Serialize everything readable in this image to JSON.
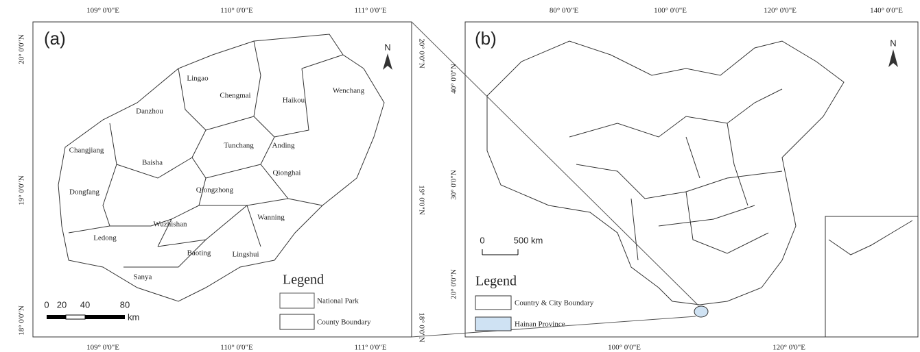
{
  "panel_a": {
    "label": "(a)",
    "north": "N",
    "top_ticks": [
      "109° 0'0\"E",
      "110° 0'0\"E",
      "111° 0'0\"E"
    ],
    "bottom_ticks": [
      "109° 0'0\"E",
      "110° 0'0\"E",
      "111° 0'0\"E"
    ],
    "left_ticks": [
      "20° 0'0\"N",
      "19° 0'0\"N",
      "18° 0'0\"N"
    ],
    "right_ticks": [
      "20° 0'0\"N",
      "19° 0'0\"N",
      "18° 0'0\"N"
    ],
    "counties": [
      "Lingao",
      "Chengmai",
      "Haikou",
      "Wenchang",
      "Danzhou",
      "Anding",
      "Tunchang",
      "Changjiang",
      "Baisha",
      "Qionghai",
      "Dongfang",
      "Qiongzhong",
      "Wanning",
      "Ledong",
      "Wuzhishan",
      "Baoting",
      "Lingshui",
      "Sanya"
    ],
    "legend": {
      "title": "Legend",
      "items": [
        "National Park",
        "County Boundary"
      ]
    },
    "scale": {
      "ticks": [
        "0",
        "20",
        "40",
        "80"
      ],
      "unit": "km"
    }
  },
  "panel_b": {
    "label": "(b)",
    "north": "N",
    "top_ticks": [
      "80° 0'0\"E",
      "100° 0'0\"E",
      "120° 0'0\"E",
      "140° 0'0\"E"
    ],
    "bottom_ticks": [
      "100° 0'0\"E",
      "120° 0'0\"E"
    ],
    "left_ticks": [
      "40° 0'0\"N",
      "30° 0'0\"N",
      "20° 0'0\"N"
    ],
    "legend": {
      "title": "Legend",
      "items": [
        "Country & City Boundary",
        "Hainan Province"
      ]
    },
    "scale": {
      "ticks": [
        "0",
        "500 km"
      ]
    }
  }
}
